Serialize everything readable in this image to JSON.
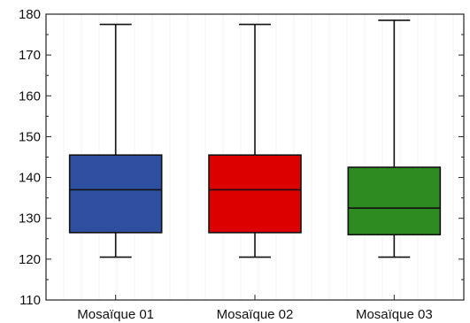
{
  "chart_data": {
    "type": "box",
    "title": "",
    "xlabel": "",
    "ylabel": "",
    "ylim": [
      110,
      180
    ],
    "yticks": [
      "110",
      "120",
      "130",
      "140",
      "150",
      "160",
      "170",
      "180"
    ],
    "grid": true,
    "categories": [
      "Mosaïque 01",
      "Mosaïque 02",
      "Mosaïque 03"
    ],
    "boxes": [
      {
        "category": "Mosaïque 01",
        "min": 120.5,
        "q1": 126.5,
        "median": 137,
        "q3": 145.5,
        "max": 177.5,
        "color": "#2e4fa0"
      },
      {
        "category": "Mosaïque 02",
        "min": 120.5,
        "q1": 126.5,
        "median": 137,
        "q3": 145.5,
        "max": 177.5,
        "color": "#dd0000"
      },
      {
        "category": "Mosaïque 03",
        "min": 120.5,
        "q1": 126,
        "median": 132.5,
        "q3": 142.5,
        "max": 178.5,
        "color": "#2e8b22"
      }
    ]
  }
}
